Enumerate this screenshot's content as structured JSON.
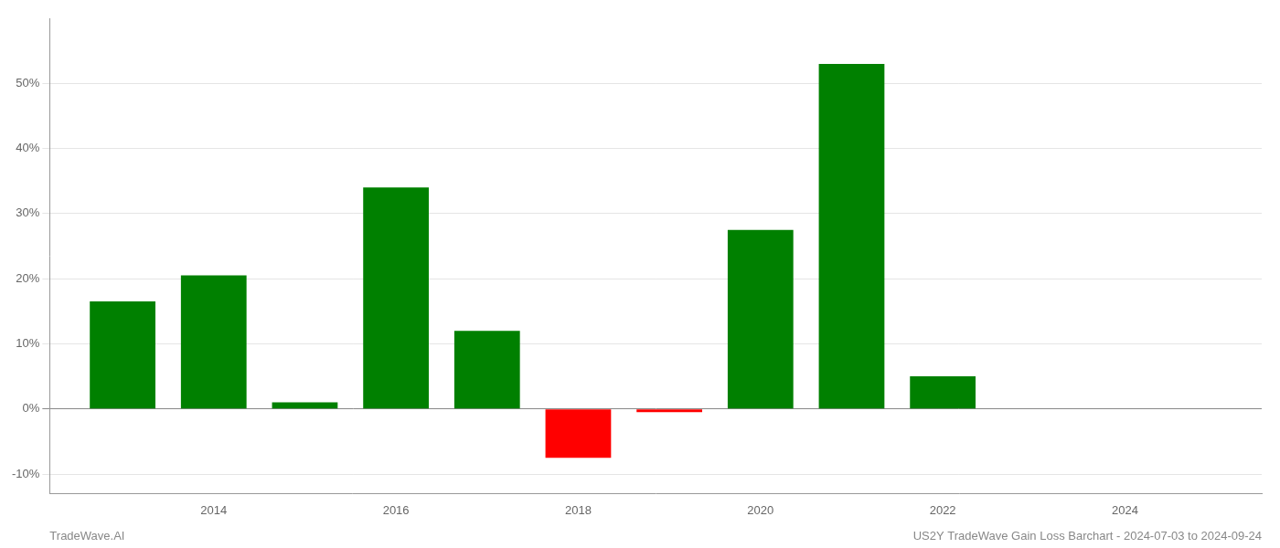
{
  "chart_data": {
    "type": "bar",
    "x": [
      2013,
      2014,
      2015,
      2016,
      2017,
      2018,
      2019,
      2020,
      2021,
      2022
    ],
    "values": [
      16.5,
      20.5,
      1.0,
      34.0,
      12.0,
      -7.5,
      -0.5,
      27.5,
      53.0,
      5.0
    ],
    "colors": [
      "#008000",
      "#008000",
      "#008000",
      "#008000",
      "#008000",
      "#ff0000",
      "#ff0000",
      "#008000",
      "#008000",
      "#008000"
    ],
    "xlim": [
      2012.2,
      2025.5
    ],
    "xticks": [
      2014,
      2016,
      2018,
      2020,
      2022,
      2024
    ],
    "ylim": [
      -13,
      60
    ],
    "yticks": [
      {
        "value": -10,
        "label": "-10%"
      },
      {
        "value": 0,
        "label": "0%"
      },
      {
        "value": 10,
        "label": "10%"
      },
      {
        "value": 20,
        "label": "20%"
      },
      {
        "value": 30,
        "label": "30%"
      },
      {
        "value": 40,
        "label": "40%"
      },
      {
        "value": 50,
        "label": "50%"
      }
    ],
    "grid": true,
    "annotations": [
      "TradeWave.AI",
      "US2Y TradeWave Gain Loss Barchart - 2024-07-03 to 2024-09-24"
    ]
  }
}
